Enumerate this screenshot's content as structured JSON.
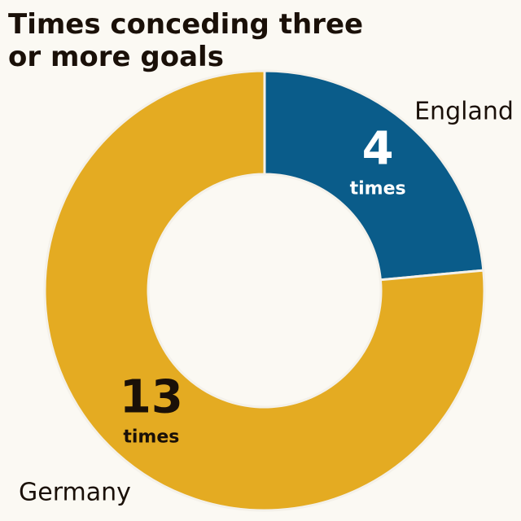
{
  "chart_data": {
    "type": "donut",
    "title": "Times conceding three or more goals",
    "categories": [
      "England",
      "Germany"
    ],
    "values": [
      4,
      13
    ],
    "unit_label": "times",
    "colors": [
      "#0a5c8a",
      "#e4ab22"
    ],
    "label_colors": [
      "#ffffff",
      "#1a1008"
    ]
  }
}
